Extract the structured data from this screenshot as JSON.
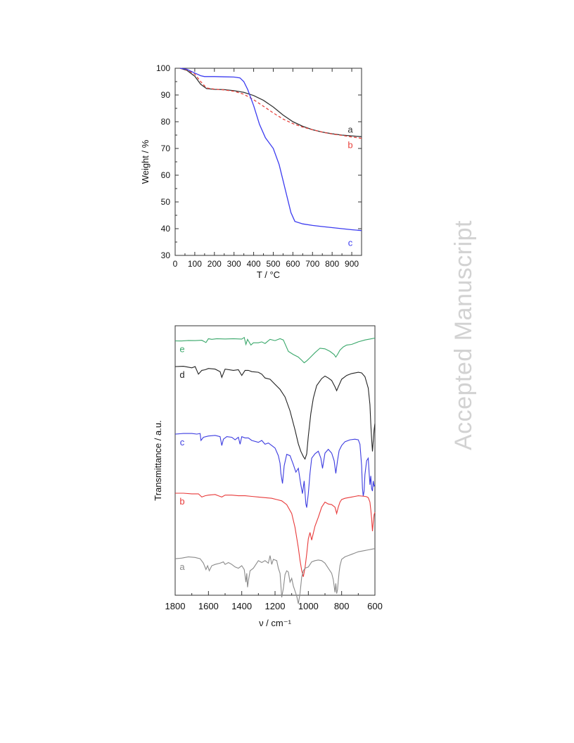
{
  "watermark": "Accepted Manuscript",
  "chart_data": [
    {
      "type": "line",
      "xlabel": "T / °C",
      "ylabel": "Weight / %",
      "xlim": [
        0,
        950
      ],
      "ylim": [
        30,
        100
      ],
      "xticks": [
        0,
        100,
        200,
        300,
        400,
        500,
        600,
        700,
        800,
        900
      ],
      "yticks": [
        30,
        40,
        50,
        60,
        70,
        80,
        90,
        100
      ],
      "grid": false,
      "series": [
        {
          "name": "a",
          "color": "#333333",
          "dashed": false,
          "x": [
            25,
            60,
            100,
            130,
            160,
            200,
            250,
            300,
            350,
            400,
            450,
            500,
            550,
            600,
            650,
            700,
            750,
            800,
            850,
            900,
            950
          ],
          "y": [
            100,
            99.2,
            97,
            94,
            92.4,
            92.1,
            92,
            91.6,
            91,
            89.8,
            88,
            85.5,
            82.5,
            80,
            78.3,
            77,
            76.1,
            75.5,
            75,
            74.7,
            74.4
          ]
        },
        {
          "name": "b",
          "color": "#e8423c",
          "dashed": true,
          "x": [
            25,
            60,
            100,
            130,
            160,
            200,
            250,
            300,
            350,
            400,
            450,
            500,
            550,
            600,
            650,
            700,
            750,
            800,
            850,
            900,
            950
          ],
          "y": [
            100,
            99.4,
            97.8,
            95,
            92.6,
            92.2,
            91.9,
            91.4,
            90.3,
            88.2,
            85.8,
            83.3,
            81,
            79.3,
            78,
            77,
            76.1,
            75.4,
            74.9,
            74.3,
            73.8
          ]
        },
        {
          "name": "c",
          "color": "#3b3bf0",
          "dashed": false,
          "x": [
            25,
            60,
            100,
            130,
            150,
            200,
            250,
            300,
            330,
            350,
            370,
            400,
            430,
            460,
            500,
            530,
            560,
            590,
            610,
            650,
            700,
            750,
            800,
            850,
            900,
            950
          ],
          "y": [
            100,
            99.6,
            98.2,
            97.2,
            96.9,
            96.9,
            96.8,
            96.7,
            96.4,
            95,
            92,
            86,
            79,
            74,
            70,
            64,
            55,
            46,
            42.7,
            41.8,
            41.2,
            40.8,
            40.4,
            40,
            39.6,
            39.3
          ]
        }
      ]
    },
    {
      "type": "line",
      "xlabel": "ν / cm⁻¹",
      "ylabel": "Transmittance / a.u.",
      "xlim": [
        1800,
        600
      ],
      "xticks": [
        1800,
        1600,
        1400,
        1200,
        1000,
        800,
        600
      ],
      "yaxis_ticks": false,
      "grid": false,
      "series": [
        {
          "name": "e",
          "color": "#3aa86b",
          "x": [
            1800,
            1760,
            1720,
            1680,
            1640,
            1615,
            1600,
            1580,
            1550,
            1500,
            1450,
            1400,
            1385,
            1375,
            1365,
            1345,
            1330,
            1300,
            1280,
            1260,
            1230,
            1200,
            1170,
            1150,
            1120,
            1090,
            1060,
            1040,
            1025,
            1010,
            990,
            960,
            930,
            900,
            870,
            845,
            835,
            825,
            810,
            790,
            770,
            740,
            700,
            660,
            620,
            600
          ],
          "y": [
            0.47,
            0.48,
            0.44,
            0.45,
            0.42,
            0.6,
            0.3,
            0.35,
            0.3,
            0.32,
            0.3,
            0.33,
            0.2,
            0.75,
            0.35,
            0.8,
            0.62,
            0.62,
            0.55,
            0.68,
            0.35,
            0.45,
            0.3,
            0.4,
            1.3,
            1.55,
            1.75,
            2.0,
            2.2,
            2.05,
            1.8,
            1.4,
            1.05,
            1.1,
            1.3,
            1.55,
            1.75,
            1.55,
            1.2,
            0.95,
            0.8,
            0.75,
            0.55,
            0.4,
            0.3,
            0.25
          ]
        },
        {
          "name": "d",
          "color": "#222222",
          "x": [
            1800,
            1750,
            1700,
            1680,
            1660,
            1640,
            1620,
            1600,
            1560,
            1530,
            1520,
            1500,
            1450,
            1420,
            1400,
            1380,
            1360,
            1340,
            1300,
            1280,
            1260,
            1230,
            1200,
            1170,
            1140,
            1110,
            1080,
            1060,
            1045,
            1030,
            1020,
            1010,
            1000,
            985,
            970,
            950,
            920,
            900,
            880,
            860,
            840,
            830,
            820,
            800,
            770,
            740,
            700,
            680,
            660,
            640,
            630,
            625,
            620,
            615,
            610,
            605,
            600
          ],
          "y": [
            0.5,
            0.48,
            0.6,
            0.5,
            1.1,
            0.8,
            0.75,
            0.65,
            0.7,
            0.9,
            1.35,
            0.7,
            0.8,
            0.75,
            1.2,
            0.8,
            0.8,
            0.9,
            0.95,
            1.1,
            1.4,
            1.5,
            1.9,
            2.3,
            2.9,
            4.0,
            5.5,
            6.6,
            7.2,
            7.6,
            7.8,
            7.4,
            6.0,
            4.2,
            3.0,
            2.0,
            1.45,
            1.25,
            1.4,
            1.6,
            2.1,
            2.4,
            2.1,
            1.5,
            1.2,
            1.05,
            0.95,
            1.0,
            1.3,
            2.2,
            3.5,
            5.0,
            6.2,
            7.2,
            6.4,
            5.5,
            5.0
          ]
        },
        {
          "name": "c",
          "color": "#3b3be0",
          "x": [
            1800,
            1750,
            1700,
            1670,
            1650,
            1645,
            1630,
            1600,
            1560,
            1530,
            1520,
            1510,
            1490,
            1460,
            1440,
            1420,
            1410,
            1400,
            1380,
            1360,
            1340,
            1300,
            1280,
            1260,
            1240,
            1220,
            1200,
            1180,
            1170,
            1165,
            1155,
            1145,
            1130,
            1110,
            1090,
            1075,
            1060,
            1045,
            1035,
            1025,
            1015,
            1010,
            1000,
            990,
            980,
            960,
            940,
            925,
            915,
            900,
            880,
            860,
            845,
            835,
            825,
            815,
            800,
            780,
            750,
            720,
            700,
            690,
            680,
            675,
            670,
            665,
            660,
            650,
            640,
            635,
            630,
            625,
            620,
            615,
            610,
            605,
            600
          ],
          "y": [
            0.5,
            0.45,
            0.45,
            0.5,
            0.45,
            1.0,
            0.75,
            0.65,
            0.6,
            0.7,
            1.4,
            0.9,
            0.7,
            0.75,
            0.95,
            0.75,
            1.3,
            0.7,
            0.8,
            0.8,
            1.0,
            1.15,
            1.0,
            1.3,
            1.2,
            1.4,
            1.6,
            2.2,
            2.8,
            3.6,
            4.4,
            3.0,
            2.1,
            2.2,
            2.9,
            3.5,
            3.2,
            4.5,
            5.2,
            4.2,
            6.0,
            6.3,
            5.2,
            3.6,
            2.4,
            2.05,
            1.85,
            2.4,
            3.2,
            2.0,
            1.7,
            2.0,
            2.6,
            3.6,
            2.6,
            1.8,
            1.4,
            1.1,
            0.95,
            0.9,
            0.95,
            1.3,
            3.0,
            4.8,
            5.4,
            5.0,
            3.7,
            2.6,
            2.4,
            3.5,
            4.5,
            3.8,
            4.8,
            5.0,
            4.2,
            4.6,
            4.5
          ]
        },
        {
          "name": "b",
          "color": "#e83a3a",
          "x": [
            1800,
            1750,
            1700,
            1660,
            1640,
            1620,
            1600,
            1560,
            1540,
            1520,
            1500,
            1460,
            1420,
            1380,
            1340,
            1300,
            1260,
            1220,
            1190,
            1160,
            1130,
            1100,
            1080,
            1060,
            1050,
            1040,
            1030,
            1020,
            1010,
            1000,
            990,
            980,
            960,
            940,
            920,
            900,
            880,
            860,
            840,
            830,
            820,
            810,
            800,
            780,
            760,
            740,
            720,
            700,
            680,
            660,
            650,
            640,
            630,
            625,
            620,
            615,
            610,
            605,
            600
          ],
          "y": [
            0.5,
            0.5,
            0.55,
            0.55,
            0.8,
            0.7,
            0.65,
            0.6,
            0.7,
            0.8,
            0.65,
            0.65,
            0.7,
            0.7,
            0.75,
            0.8,
            0.85,
            0.9,
            1.0,
            1.1,
            1.4,
            2.1,
            3.2,
            4.8,
            5.8,
            6.6,
            7.1,
            6.4,
            5.3,
            4.1,
            3.6,
            4.2,
            3.1,
            2.4,
            1.6,
            1.2,
            1.35,
            1.4,
            1.6,
            2.1,
            1.6,
            1.2,
            1.0,
            0.9,
            0.85,
            0.8,
            0.75,
            0.7,
            0.72,
            0.75,
            0.78,
            0.85,
            1.2,
            1.8,
            2.5,
            3.5,
            2.8,
            2.2,
            2.0
          ]
        },
        {
          "name": "a",
          "color": "#8a8a8a",
          "x": [
            1800,
            1760,
            1720,
            1680,
            1650,
            1630,
            1615,
            1605,
            1595,
            1580,
            1560,
            1530,
            1510,
            1500,
            1480,
            1460,
            1440,
            1420,
            1400,
            1385,
            1375,
            1370,
            1365,
            1360,
            1350,
            1330,
            1300,
            1280,
            1260,
            1240,
            1230,
            1220,
            1210,
            1190,
            1180,
            1170,
            1160,
            1150,
            1140,
            1130,
            1120,
            1110,
            1100,
            1090,
            1080,
            1070,
            1060,
            1050,
            1040,
            1030,
            1020,
            1000,
            980,
            960,
            940,
            920,
            900,
            880,
            860,
            850,
            840,
            835,
            830,
            825,
            820,
            815,
            810,
            800,
            780,
            760,
            740,
            720,
            700,
            680,
            660,
            640,
            620,
            600
          ],
          "y": [
            0.45,
            0.4,
            0.3,
            0.35,
            0.45,
            0.8,
            1.3,
            1.0,
            1.4,
            1.0,
            0.9,
            0.8,
            0.7,
            0.9,
            0.75,
            0.9,
            1.1,
            1.2,
            1.0,
            1.3,
            2.3,
            1.6,
            2.7,
            2.2,
            1.4,
            1.2,
            0.6,
            0.75,
            0.6,
            0.8,
            0.2,
            0.9,
            0.5,
            0.6,
            1.2,
            1.6,
            3.5,
            2.8,
            1.7,
            1.4,
            1.5,
            2.3,
            2.0,
            2.6,
            3.0,
            3.4,
            4.0,
            3.2,
            1.9,
            1.4,
            1.2,
            1.1,
            0.7,
            0.6,
            0.55,
            0.6,
            0.8,
            1.2,
            1.6,
            2.1,
            3.1,
            2.4,
            3.2,
            2.9,
            2.2,
            1.5,
            1.0,
            0.5,
            0.3,
            0.2,
            0.1,
            0.0,
            -0.1,
            -0.15,
            -0.2,
            -0.25,
            -0.3,
            -0.35
          ]
        }
      ]
    }
  ]
}
